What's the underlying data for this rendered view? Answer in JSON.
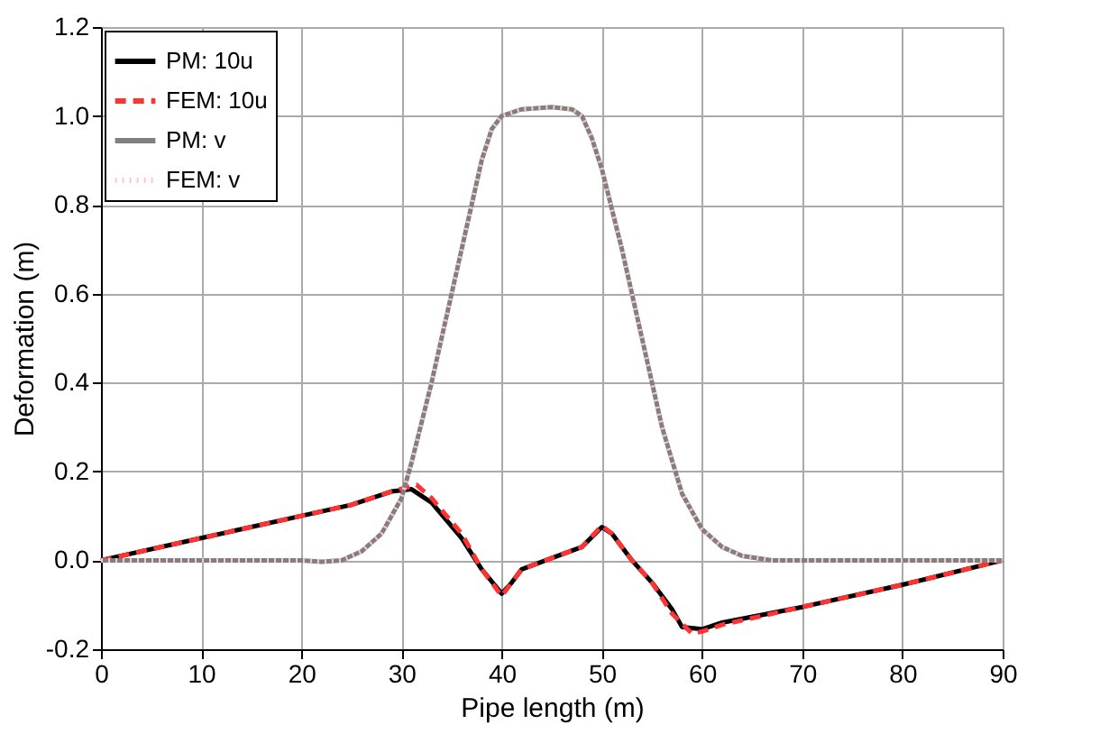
{
  "chart_data": {
    "type": "line",
    "xlabel": "Pipe length (m)",
    "ylabel": "Deformation (m)",
    "xlim": [
      0,
      90
    ],
    "xticks": [
      0,
      10,
      20,
      30,
      40,
      50,
      60,
      70,
      80,
      90
    ],
    "ylim": [
      -0.2,
      1.2
    ],
    "yticks": [
      {
        "value": -0.2,
        "label": "-0.2"
      },
      {
        "value": 0,
        "label": "0.0"
      },
      {
        "value": 0.2,
        "label": "0.2"
      },
      {
        "value": 0.4,
        "label": "0.4"
      },
      {
        "value": 0.6,
        "label": "0.6"
      },
      {
        "value": 0.8,
        "label": "0.8"
      },
      {
        "value": 1,
        "label": "1.0"
      },
      {
        "value": 1.2,
        "label": "1.2"
      }
    ],
    "grid": true,
    "legend": "top left",
    "marker": "none",
    "series": [
      {
        "name": "PM: 10u",
        "color": "#000000",
        "line_style": "solid",
        "x": [
          0,
          10,
          20,
          25,
          29,
          31,
          33,
          36,
          38,
          40,
          41,
          42,
          45,
          48,
          50,
          51,
          53,
          55,
          57,
          58,
          60,
          62,
          70,
          80,
          90
        ],
        "values": [
          0,
          0.05,
          0.1,
          0.125,
          0.155,
          0.16,
          0.13,
          0.05,
          -0.02,
          -0.075,
          -0.05,
          -0.02,
          0.005,
          0.03,
          0.075,
          0.06,
          0.0,
          -0.05,
          -0.11,
          -0.15,
          -0.155,
          -0.14,
          -0.105,
          -0.055,
          0
        ]
      },
      {
        "name": "FEM: 10u",
        "color": "#ff3333",
        "line_style": "dashed",
        "x": [
          0,
          10,
          20,
          25,
          29,
          31.5,
          33,
          36,
          38,
          40,
          41,
          42,
          45,
          48,
          50,
          51,
          53,
          55,
          57,
          59,
          60,
          62,
          70,
          80,
          90
        ],
        "values": [
          0,
          0.05,
          0.1,
          0.125,
          0.155,
          0.17,
          0.14,
          0.06,
          -0.02,
          -0.08,
          -0.05,
          -0.02,
          0.005,
          0.03,
          0.078,
          0.06,
          0.0,
          -0.05,
          -0.12,
          -0.165,
          -0.16,
          -0.145,
          -0.105,
          -0.055,
          0
        ]
      },
      {
        "name": "PM: v",
        "color": "#808080",
        "line_style": "solid",
        "x": [
          0,
          20,
          22,
          24,
          26,
          28,
          30,
          31,
          33,
          35,
          37,
          38,
          39,
          40,
          42,
          45,
          47,
          48,
          49,
          50,
          52,
          54,
          56,
          58,
          60,
          62,
          64,
          67,
          70,
          90
        ],
        "values": [
          0,
          0,
          -0.003,
          0,
          0.02,
          0.06,
          0.14,
          0.22,
          0.4,
          0.6,
          0.8,
          0.9,
          0.97,
          1.0,
          1.015,
          1.02,
          1.015,
          1.0,
          0.95,
          0.88,
          0.7,
          0.5,
          0.3,
          0.15,
          0.07,
          0.03,
          0.01,
          0,
          0,
          0
        ]
      },
      {
        "name": "FEM: v",
        "color": "#ffc8c8",
        "line_style": "dotted",
        "x": [
          0,
          20,
          22,
          24,
          26,
          28,
          30,
          31,
          33,
          35,
          37,
          38,
          39,
          40,
          42,
          45,
          47,
          48,
          49,
          50,
          52,
          54,
          56,
          58,
          60,
          62,
          64,
          67,
          70,
          90
        ],
        "values": [
          0,
          0,
          -0.003,
          0,
          0.02,
          0.06,
          0.14,
          0.22,
          0.4,
          0.6,
          0.8,
          0.9,
          0.97,
          1.0,
          1.015,
          1.02,
          1.015,
          1.0,
          0.95,
          0.88,
          0.7,
          0.5,
          0.3,
          0.15,
          0.07,
          0.03,
          0.01,
          0,
          0,
          0
        ]
      }
    ]
  }
}
